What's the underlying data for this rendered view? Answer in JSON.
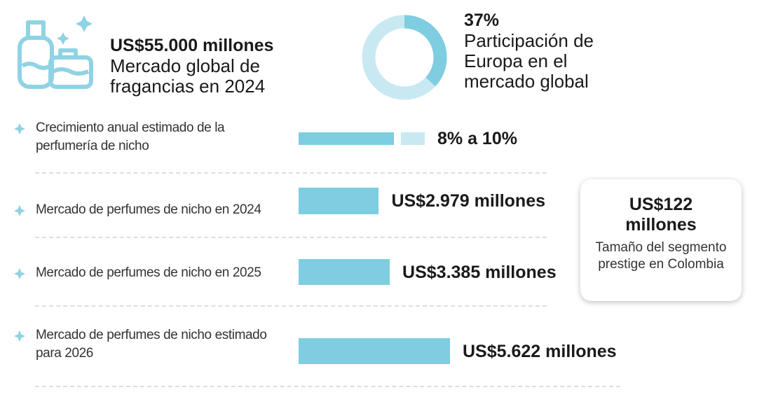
{
  "headline": {
    "value_label": "US$55.000 millones",
    "text": "Mercado global de fragancias en 2024"
  },
  "donut": {
    "value": 37,
    "value_label": "37%",
    "text": "Participación de Europa en el mercado global",
    "color": "#7ecde0",
    "rest_color": "#c9e9f2"
  },
  "rows": [
    {
      "label": "Crecimiento anual estimado de la perfumería de nicho",
      "values": [
        8,
        10
      ],
      "value_label": "8% a 10%"
    },
    {
      "label": "Mercado de perfumes de nicho en 2024",
      "value": 2979,
      "value_label": "US$2.979 millones"
    },
    {
      "label": "Mercado de perfumes de nicho en 2025",
      "value": 3385,
      "value_label": "US$3.385 millones"
    },
    {
      "label": "Mercado de perfumes de nicho estimado para 2026",
      "value": 5622,
      "value_label": "US$5.622 millones"
    }
  ],
  "callout": {
    "value": 122,
    "value_label": "US$122 millones",
    "text": "Tamaño del segmento prestige en Colombia"
  },
  "bar_color": "#7ecde0",
  "bar_light_color": "#c9e9f2"
}
